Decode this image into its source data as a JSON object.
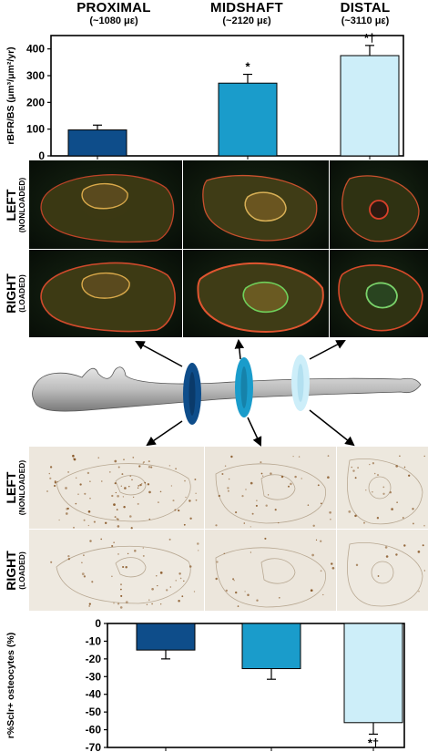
{
  "regions": [
    {
      "name": "PROXIMAL",
      "strain": "(~1080 με)"
    },
    {
      "name": "MIDSHAFT",
      "strain": "(~2120 με)"
    },
    {
      "name": "DISTAL",
      "strain": "(~3110 με)"
    }
  ],
  "row_labels": {
    "left": {
      "main": "LEFT",
      "sub": "(NONLOADED)"
    },
    "right": {
      "main": "RIGHT",
      "sub": "(LOADED)"
    }
  },
  "colors": {
    "proximal": "#0e4d8a",
    "midshaft": "#1a9ccb",
    "distal": "#cdeef9",
    "fluoro_bg": "#0c160c",
    "ihc_bg": "#ece6dc"
  },
  "chart_data": [
    {
      "type": "bar",
      "categories": [
        "PROXIMAL",
        "MIDSHAFT",
        "DISTAL"
      ],
      "values": [
        97,
        272,
        375
      ],
      "errors": [
        18,
        33,
        38
      ],
      "annotations": [
        "",
        "*",
        "*†"
      ],
      "ylabel": "rBFR/BS (μm³/μm²/yr)",
      "ylim": [
        0,
        450
      ],
      "yticks": [
        "0",
        "100",
        "200",
        "300",
        "400"
      ],
      "grid": false
    },
    {
      "type": "bar",
      "categories": [
        "PROXIMAL",
        "MIDSHAFT",
        "DISTAL"
      ],
      "values": [
        -15,
        -25.5,
        -56
      ],
      "errors": [
        5,
        6,
        6.5
      ],
      "annotations": [
        "",
        "",
        "*†"
      ],
      "ylabel": "r%Sclr+ osteocytes (%)",
      "ylim": [
        -70,
        0
      ],
      "yticks": [
        "0",
        "-10",
        "-20",
        "-30",
        "-40",
        "-50",
        "-60",
        "-70"
      ],
      "grid": false
    }
  ]
}
